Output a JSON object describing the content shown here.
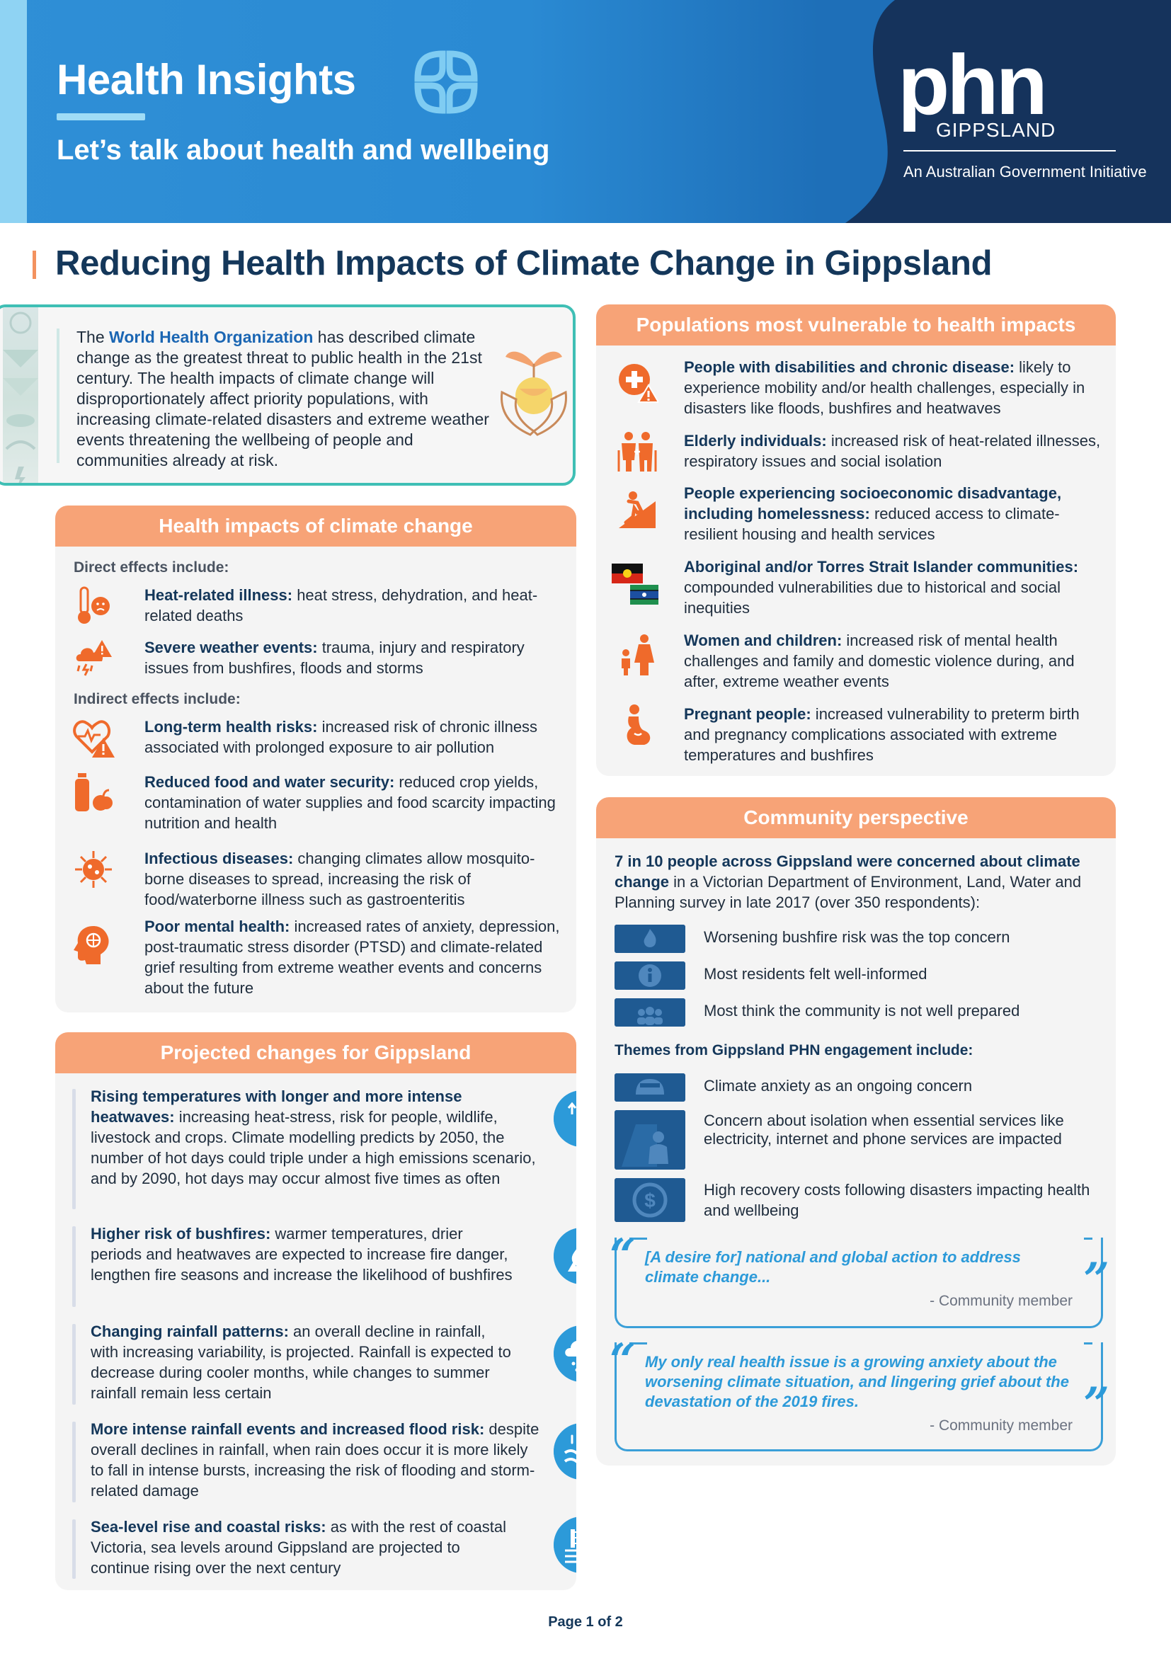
{
  "header": {
    "title": "Health Insights",
    "subtitle": "Let’s talk about health and wellbeing",
    "logo_text": "phn",
    "logo_region": "GIPPSLAND",
    "logo_tagline": "An Australian Government Initiative"
  },
  "colors": {
    "brand_blue": "#2a8ad3",
    "navy": "#14375a",
    "orange": "#f7a377",
    "teal": "#3fbfb5"
  },
  "title": "Reducing Health Impacts of Climate Change in Gippsland",
  "intro": {
    "lead": "The ",
    "org": "World Health Organization",
    "body": " has described climate change as the greatest threat to public health in the 21st century. The health impacts of climate change will disproportionately affect priority populations, with increasing climate-related disasters and extreme weather events threatening the wellbeing of people and communities already at risk.",
    "icon": "hands-holding-seedling-icon"
  },
  "health_impacts": {
    "heading": "Health impacts of climate change",
    "direct_label": "Direct effects include:",
    "direct": [
      {
        "title": "Heat-related illness:",
        "text": " heat stress, dehydration, and heat-related deaths",
        "icon": "thermometer-face-icon"
      },
      {
        "title": "Severe weather events:",
        "text": " trauma, injury and respiratory issues from bushfires, floods and storms",
        "icon": "storm-warning-icon"
      }
    ],
    "indirect_label": "Indirect effects include:",
    "indirect": [
      {
        "title": "Long-term health risks:",
        "text": " increased risk of chronic illness associated with prolonged exposure to air pollution",
        "icon": "heart-warning-icon"
      },
      {
        "title": "Reduced food and water security:",
        "text": " reduced crop yields, contamination of water supplies and food scarcity impacting nutrition and health",
        "icon": "bottle-apple-icon"
      },
      {
        "title": "Infectious diseases:",
        "text": " changing climates allow mosquito-borne diseases to spread, increasing the risk of food/waterborne illness such as gastroenteritis",
        "icon": "virus-icon"
      },
      {
        "title": "Poor mental health:",
        "text": " increased rates of anxiety, depression, post-traumatic stress disorder (PTSD) and climate-related grief resulting from extreme weather events and concerns about the future",
        "icon": "head-brain-icon"
      }
    ]
  },
  "projected": {
    "heading": "Projected changes for Gippsland",
    "items": [
      {
        "title": "Rising temperatures with longer and more intense heatwaves:",
        "text": " increasing heat-stress, risk for people, wildlife, livestock and crops. Climate modelling predicts by 2050, the number of hot days could triple under a high emissions scenario, and by 2090, hot days may occur almost five times as often",
        "icon": "thermometer-up-icon"
      },
      {
        "title": "Higher risk of bushfires:",
        "text": " warmer temperatures, drier periods and heatwaves are expected to increase fire danger, lengthen fire seasons and increase the likelihood of bushfires",
        "icon": "bushfire-icon"
      },
      {
        "title": "Changing rainfall patterns:",
        "text": " an overall decline in rainfall, with increasing variability, is projected. Rainfall is expected to decrease during cooler months, while changes to summer rainfall remain less certain",
        "icon": "rain-cloud-icon"
      },
      {
        "title": "More intense rainfall events and increased flood risk:",
        "text": " despite overall declines in rainfall, when rain does occur it is more likely to fall in intense bursts, increasing the risk of flooding and storm-related damage",
        "icon": "flood-icon"
      },
      {
        "title": "Sea-level rise and coastal risks:",
        "text": " as with the rest of coastal Victoria, sea levels around Gippsland are projected to continue rising over the next century",
        "icon": "sea-level-icon"
      }
    ]
  },
  "vulnerable": {
    "heading": "Populations most vulnerable to health impacts",
    "items": [
      {
        "title": "People with disabilities and chronic disease:",
        "text": " likely to experience mobility and/or health challenges, especially in disasters like floods, bushfires and heatwaves",
        "icon": "medical-warning-icon"
      },
      {
        "title": "Elderly individuals:",
        "text": " increased risk of heat-related illnesses, respiratory issues and social isolation",
        "icon": "elderly-couple-icon"
      },
      {
        "title": "People experiencing socioeconomic disadvantage, including homelessness:",
        "text": " reduced access to climate-resilient housing and health services",
        "icon": "person-climbing-icon"
      },
      {
        "title": "Aboriginal and/or Torres Strait Islander communities:",
        "text": " compounded vulnerabilities due to historical and social inequities",
        "icon": "flags-icon"
      },
      {
        "title": "Women and children:",
        "text": " increased risk of mental health challenges and family and domestic violence during, and after, extreme weather events",
        "icon": "woman-child-icon"
      },
      {
        "title": "Pregnant people:",
        "text": " increased vulnerability to preterm birth and pregnancy complications associated with extreme temperatures and bushfires",
        "icon": "pregnant-person-icon"
      }
    ]
  },
  "community": {
    "heading": "Community perspective",
    "intro_bold": "7 in 10 people across Gippsland were concerned about climate change",
    "intro_rest": " in a Victorian Department of Environment, Land, Water and Planning survey in late 2017 (over 350 respondents):",
    "stats": [
      {
        "label": "Worsening bushfire risk was the top concern",
        "icon": "fire-icon"
      },
      {
        "label": "Most residents felt well-informed",
        "icon": "info-icon"
      },
      {
        "label": "Most think the community is not well prepared",
        "icon": "group-icon"
      }
    ],
    "themes_label": "Themes from Gippsland PHN engagement include:",
    "themes": [
      {
        "label": "Climate anxiety as an ongoing concern",
        "icon": "anxiety-icon"
      },
      {
        "label": "Concern about isolation when essential services like electricity, internet and phone services are impacted",
        "icon": "isolation-icon"
      },
      {
        "label": "High recovery costs following disasters impacting health and wellbeing",
        "icon": "dollar-icon"
      }
    ],
    "quotes": [
      {
        "text": "[A desire for] national and global action to address climate change...",
        "attr": "- Community member"
      },
      {
        "text": "My only real health issue is a growing anxiety about the worsening climate situation, and lingering grief about the devastation of the 2019 fires.",
        "attr": "- Community member"
      }
    ],
    "open_mark": "“",
    "close_mark": "”"
  },
  "footer": {
    "page": "Page 1 of 2"
  }
}
